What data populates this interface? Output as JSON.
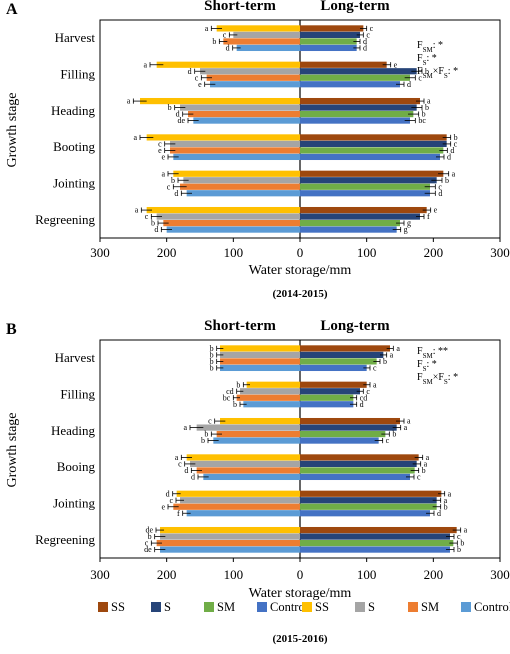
{
  "chart_data": [
    {
      "type": "bar",
      "panel_label": "A",
      "year_label": "(2014-2015)",
      "orientation": "horizontal-butterfly",
      "left_title": "Short-term",
      "right_title": "Long-term",
      "ylabel": "Growth stage",
      "xlabel": "Water storage/mm",
      "xticks_left": [
        "300",
        "200",
        "100",
        "0"
      ],
      "xticks_right": [
        "100",
        "200",
        "300"
      ],
      "xlim": [
        0,
        300
      ],
      "categories": [
        "Harvest",
        "Filling",
        "Heading",
        "Booting",
        "Jointing",
        "Regreening"
      ],
      "stats": [
        "F_SM: *",
        "F_S: *",
        "F_SM×F_S: *"
      ],
      "short_term": [
        {
          "name": "SS",
          "color": "#FFC000",
          "values": [
            125,
            215,
            240,
            230,
            190,
            230
          ],
          "errors": [
            8,
            10,
            10,
            10,
            8,
            8
          ],
          "letters": [
            "a",
            "a",
            "a",
            "a",
            "a",
            "a"
          ]
        },
        {
          "name": "S",
          "color": "#A5A5A5",
          "values": [
            100,
            150,
            180,
            195,
            175,
            215
          ],
          "errors": [
            6,
            8,
            8,
            8,
            8,
            8
          ],
          "letters": [
            "c",
            "d",
            "b",
            "c",
            "b",
            "c"
          ]
        },
        {
          "name": "SM",
          "color": "#ED7D31",
          "values": [
            115,
            140,
            168,
            195,
            180,
            205
          ],
          "errors": [
            6,
            8,
            8,
            8,
            10,
            8
          ],
          "letters": [
            "b",
            "c",
            "d",
            "e",
            "c",
            "b"
          ]
        },
        {
          "name": "Control",
          "color": "#5B9BD5",
          "values": [
            95,
            135,
            160,
            190,
            170,
            200
          ],
          "errors": [
            6,
            8,
            8,
            8,
            8,
            8
          ],
          "letters": [
            "d",
            "e",
            "de",
            "e",
            "d",
            "d"
          ]
        }
      ],
      "long_term": [
        {
          "name": "SS",
          "color": "#9E480E",
          "values": [
            95,
            130,
            180,
            220,
            215,
            190
          ],
          "errors": [
            5,
            6,
            6,
            6,
            8,
            6
          ],
          "letters": [
            "c",
            "e",
            "a",
            "b",
            "a",
            "e"
          ]
        },
        {
          "name": "S",
          "color": "#264478",
          "values": [
            90,
            175,
            175,
            220,
            205,
            180
          ],
          "errors": [
            5,
            8,
            8,
            6,
            8,
            6
          ],
          "letters": [
            "c",
            "b",
            "b",
            "c",
            "b",
            "f"
          ]
        },
        {
          "name": "SM",
          "color": "#70AD47",
          "values": [
            85,
            165,
            170,
            215,
            195,
            150
          ],
          "errors": [
            5,
            8,
            8,
            6,
            8,
            6
          ],
          "letters": [
            "d",
            "c",
            "b",
            "d",
            "c",
            "g"
          ]
        },
        {
          "name": "Control",
          "color": "#4472C4",
          "values": [
            85,
            150,
            165,
            210,
            195,
            145
          ],
          "errors": [
            5,
            6,
            8,
            6,
            8,
            6
          ],
          "letters": [
            "d",
            "d",
            "bc",
            "d",
            "d",
            "g"
          ]
        }
      ]
    },
    {
      "type": "bar",
      "panel_label": "B",
      "year_label": "(2015-2016)",
      "orientation": "horizontal-butterfly",
      "left_title": "Short-term",
      "right_title": "Long-term",
      "ylabel": "Growth stage",
      "xlabel": "Water storage/mm",
      "xticks_left": [
        "300",
        "200",
        "100",
        "0"
      ],
      "xticks_right": [
        "100",
        "200",
        "300"
      ],
      "xlim": [
        0,
        300
      ],
      "categories": [
        "Harvest",
        "Filling",
        "Heading",
        "Booing",
        "Jointing",
        "Regreening"
      ],
      "stats": [
        "F_SM: **",
        "F_S: *",
        "F_SM×F_S: *"
      ],
      "short_term": [
        {
          "name": "SS",
          "color": "#FFC000",
          "values": [
            120,
            80,
            120,
            170,
            185,
            210
          ],
          "errors": [
            5,
            5,
            8,
            8,
            6,
            6
          ],
          "letters": [
            "b",
            "b",
            "c",
            "a",
            "d",
            "de"
          ]
        },
        {
          "name": "S",
          "color": "#A5A5A5",
          "values": [
            120,
            90,
            155,
            165,
            180,
            210
          ],
          "errors": [
            5,
            5,
            10,
            8,
            6,
            8
          ],
          "letters": [
            "b",
            "cd",
            "a",
            "c",
            "c",
            "b"
          ]
        },
        {
          "name": "SM",
          "color": "#ED7D31",
          "values": [
            120,
            95,
            125,
            155,
            190,
            215
          ],
          "errors": [
            5,
            5,
            8,
            8,
            8,
            8
          ],
          "letters": [
            "b",
            "bc",
            "b",
            "d",
            "e",
            "c"
          ]
        },
        {
          "name": "Control",
          "color": "#5B9BD5",
          "values": [
            120,
            85,
            130,
            145,
            170,
            210
          ],
          "errors": [
            5,
            5,
            8,
            8,
            6,
            8
          ],
          "letters": [
            "b",
            "b",
            "b",
            "d",
            "f",
            "de"
          ]
        }
      ],
      "long_term": [
        {
          "name": "SS",
          "color": "#9E480E",
          "values": [
            135,
            100,
            150,
            178,
            212,
            235
          ],
          "errors": [
            5,
            5,
            6,
            6,
            5,
            6
          ],
          "letters": [
            "a",
            "a",
            "a",
            "a",
            "a",
            "a"
          ]
        },
        {
          "name": "S",
          "color": "#264478",
          "values": [
            125,
            90,
            145,
            175,
            205,
            225
          ],
          "errors": [
            5,
            5,
            6,
            6,
            6,
            6
          ],
          "letters": [
            "a",
            "c",
            "a",
            "a",
            "a",
            "c"
          ]
        },
        {
          "name": "SM",
          "color": "#70AD47",
          "values": [
            115,
            80,
            128,
            172,
            205,
            230
          ],
          "errors": [
            5,
            5,
            6,
            6,
            6,
            6
          ],
          "letters": [
            "b",
            "cd",
            "b",
            "b",
            "b",
            "b"
          ]
        },
        {
          "name": "Control",
          "color": "#4472C4",
          "values": [
            100,
            80,
            118,
            165,
            195,
            225
          ],
          "errors": [
            5,
            5,
            6,
            6,
            6,
            6
          ],
          "letters": [
            "c",
            "d",
            "c",
            "c",
            "d",
            "b"
          ]
        }
      ]
    }
  ],
  "legend": {
    "items": [
      {
        "label": "SS",
        "color": "#9E480E"
      },
      {
        "label": "S",
        "color": "#264478"
      },
      {
        "label": "SM",
        "color": "#70AD47"
      },
      {
        "label": "Control",
        "color": "#4472C4"
      },
      {
        "label": "SS",
        "color": "#FFC000"
      },
      {
        "label": "S",
        "color": "#A5A5A5"
      },
      {
        "label": "SM",
        "color": "#ED7D31"
      },
      {
        "label": "Control",
        "color": "#5B9BD5"
      }
    ]
  }
}
